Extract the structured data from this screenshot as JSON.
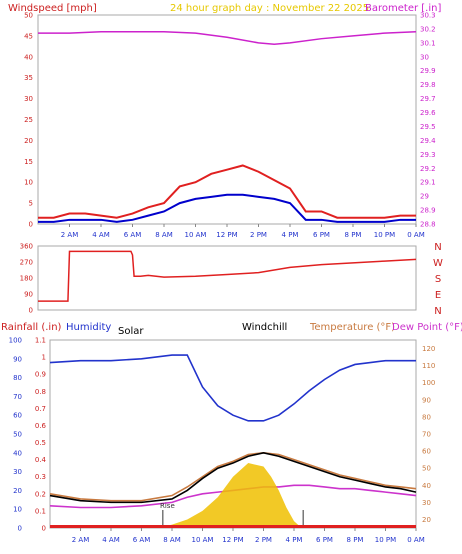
{
  "chart_data": [
    {
      "type": "line",
      "title": "24 hour graph day : November 22 2025",
      "left_axis": {
        "label": "Windspeed [mph]",
        "ylim": [
          0,
          50
        ],
        "ticks": [
          "0",
          "5",
          "10",
          "15",
          "20",
          "25",
          "30",
          "35",
          "40",
          "45",
          "50"
        ]
      },
      "right_axis": {
        "label": "Barometer [.in]",
        "ylim": [
          28.8,
          30.3
        ],
        "ticks": [
          "28.8",
          "28.9",
          "29",
          "29.1",
          "29.2",
          "29.3",
          "29.4",
          "29.5",
          "29.6",
          "29.7",
          "29.8",
          "29.9",
          "30",
          "30.1",
          "30.2",
          "30.3"
        ]
      },
      "x_ticks": [
        "2 AM",
        "4 AM",
        "6 AM",
        "8 AM",
        "10 AM",
        "12 PM",
        "2 PM",
        "4 PM",
        "6 PM",
        "8 PM",
        "10 PM",
        "0 AM"
      ],
      "series": [
        {
          "name": "Windspeed",
          "color": "#e02020",
          "x": [
            0,
            1,
            2,
            3,
            4,
            5,
            6,
            7,
            8,
            9,
            10,
            11,
            12,
            13,
            14,
            15,
            16,
            17,
            18,
            19,
            20,
            21,
            22,
            23,
            24
          ],
          "values": [
            1.5,
            1.5,
            2.5,
            2.5,
            2,
            1.5,
            2.5,
            4,
            5,
            9,
            10,
            12,
            13,
            14,
            12.5,
            10.5,
            8.5,
            3,
            3,
            1.5,
            1.5,
            1.5,
            1.5,
            2,
            2
          ]
        },
        {
          "name": "Wind gust",
          "color": "#0000cc",
          "x": [
            0,
            1,
            2,
            3,
            4,
            5,
            6,
            7,
            8,
            9,
            10,
            11,
            12,
            13,
            14,
            15,
            16,
            17,
            18,
            19,
            20,
            21,
            22,
            23,
            24
          ],
          "values": [
            0.5,
            0.5,
            1,
            1,
            1,
            0.5,
            1,
            2,
            3,
            5,
            6,
            6.5,
            7,
            7,
            6.5,
            6,
            5,
            1,
            1,
            0.5,
            0.5,
            0.5,
            0.5,
            1,
            1
          ]
        },
        {
          "name": "Barometer",
          "color": "#cc22cc",
          "x": [
            0,
            2,
            4,
            6,
            8,
            10,
            12,
            14,
            15,
            16,
            18,
            20,
            22,
            24
          ],
          "values": [
            30.17,
            30.17,
            30.18,
            30.18,
            30.18,
            30.17,
            30.14,
            30.1,
            30.09,
            30.1,
            30.13,
            30.15,
            30.17,
            30.18
          ]
        }
      ]
    },
    {
      "type": "line",
      "labels_right": [
        "N",
        "W",
        "S",
        "E",
        "N"
      ],
      "ylim": [
        0,
        360
      ],
      "ticks": [
        "0",
        "90",
        "180",
        "270",
        "360"
      ],
      "series": [
        {
          "name": "Wind direction",
          "color": "#e02020",
          "x": [
            0,
            1.9,
            2,
            5.9,
            6,
            6.1,
            6.5,
            7,
            8,
            10,
            12,
            14,
            16,
            18,
            20,
            22,
            24
          ],
          "values": [
            50,
            50,
            330,
            330,
            310,
            190,
            190,
            195,
            185,
            190,
            200,
            210,
            240,
            255,
            265,
            275,
            285
          ]
        }
      ]
    },
    {
      "type": "line",
      "headers": {
        "rainfall": "Rainfall (.in)",
        "humidity": "Humidity",
        "solar": "Solar",
        "windchill": "Windchill",
        "temperature": "Temperature (°F)",
        "dewpoint": "Dew Point (°F)"
      },
      "marker_label": "Rise",
      "humidity_axis": {
        "ylim": [
          0,
          100
        ],
        "ticks": [
          "0",
          "10",
          "20",
          "30",
          "40",
          "50",
          "60",
          "70",
          "80",
          "90",
          "100"
        ]
      },
      "rain_axis": {
        "ylim": [
          0,
          1.1
        ],
        "ticks": [
          "0",
          "0.1",
          "0.2",
          "0.3",
          "0.4",
          "0.5",
          "0.6",
          "0.7",
          "0.8",
          "0.9",
          "1",
          "1.1"
        ]
      },
      "temp_axis": {
        "ylim": [
          15,
          125
        ],
        "ticks": [
          "20",
          "30",
          "40",
          "50",
          "60",
          "70",
          "80",
          "90",
          "100",
          "110",
          "120"
        ]
      },
      "x_ticks": [
        "2 AM",
        "4 AM",
        "6 AM",
        "8 AM",
        "10 AM",
        "12 PM",
        "2 PM",
        "4 PM",
        "6 PM",
        "8 PM",
        "10 PM",
        "0 AM"
      ],
      "series": [
        {
          "name": "Humidity",
          "color": "#2233cc",
          "axis": "humidity",
          "x": [
            0,
            2,
            4,
            6,
            8,
            9,
            10,
            11,
            12,
            13,
            14,
            15,
            16,
            17,
            18,
            19,
            20,
            21,
            22,
            23,
            24
          ],
          "values": [
            88,
            89,
            89,
            90,
            92,
            92,
            75,
            65,
            60,
            57,
            57,
            60,
            66,
            73,
            79,
            84,
            87,
            88,
            89,
            89,
            89
          ]
        },
        {
          "name": "Temperature",
          "color": "#c87a40",
          "axis": "temp",
          "x": [
            0,
            2,
            4,
            6,
            8,
            9,
            10,
            11,
            12,
            13,
            14,
            15,
            16,
            17,
            18,
            19,
            20,
            21,
            22,
            23,
            24
          ],
          "values": [
            35,
            32,
            31,
            31,
            34,
            39,
            45,
            51,
            54,
            58,
            59,
            58,
            55,
            52,
            49,
            46,
            44,
            42,
            40,
            39,
            38
          ]
        },
        {
          "name": "Windchill",
          "color": "#000000",
          "axis": "temp",
          "x": [
            0,
            2,
            4,
            6,
            8,
            9,
            10,
            11,
            12,
            13,
            14,
            15,
            16,
            17,
            18,
            19,
            20,
            21,
            22,
            23,
            24
          ],
          "values": [
            34,
            31,
            30,
            30,
            32,
            37,
            44,
            50,
            53,
            57,
            59,
            57,
            54,
            51,
            48,
            45,
            43,
            41,
            39,
            38,
            36
          ]
        },
        {
          "name": "Dew Point",
          "color": "#cc33cc",
          "axis": "temp",
          "x": [
            0,
            2,
            4,
            6,
            8,
            9,
            10,
            11,
            12,
            13,
            14,
            15,
            16,
            17,
            18,
            19,
            20,
            21,
            22,
            23,
            24
          ],
          "values": [
            28,
            27,
            27,
            28,
            30,
            33,
            35,
            36,
            37,
            38,
            39,
            39,
            40,
            40,
            39,
            38,
            38,
            37,
            36,
            35,
            34
          ]
        },
        {
          "name": "Solar",
          "color": "#f0c000",
          "axis": "rain",
          "x": [
            7,
            8,
            9,
            10,
            11,
            12,
            13,
            14,
            14.5,
            15,
            15.5,
            16,
            16.5
          ],
          "values": [
            0,
            0.02,
            0.05,
            0.1,
            0.18,
            0.3,
            0.38,
            0.36,
            0.3,
            0.22,
            0.12,
            0.04,
            0
          ]
        }
      ]
    }
  ]
}
